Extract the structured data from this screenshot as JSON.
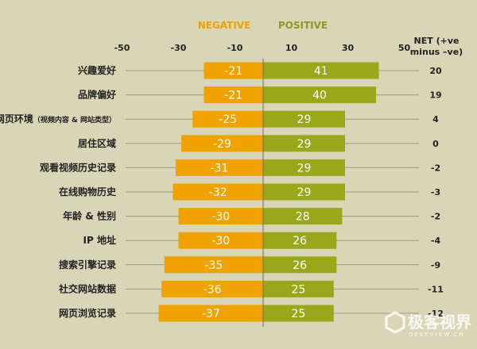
{
  "chart_data": {
    "type": "bar",
    "subtype": "diverging",
    "xlim": [
      -50,
      50
    ],
    "xticks": [
      -50,
      -30,
      -10,
      10,
      30,
      50
    ],
    "legend": {
      "negative": "NEGATIVE",
      "positive": "POSITIVE"
    },
    "net_header": [
      "NET (+ve",
      "minus –ve)"
    ],
    "colors": {
      "negative": "#f0a300",
      "positive": "#97a81a",
      "background": "#d9d6b7"
    },
    "categories": [
      "兴趣爱好",
      "品牌偏好",
      "网页环境（视频内容 & 网站类型）",
      "居住区域",
      "观看视频历史记录",
      "在线购物历史",
      "年龄 & 性别",
      "IP 地址",
      "搜索引擎记录",
      "社交网站数据",
      "网页浏览记录"
    ],
    "series": [
      {
        "name": "NEGATIVE",
        "values": [
          -21,
          -21,
          -25,
          -29,
          -31,
          -32,
          -30,
          -30,
          -35,
          -36,
          -37
        ]
      },
      {
        "name": "POSITIVE",
        "values": [
          41,
          40,
          29,
          29,
          29,
          29,
          28,
          26,
          26,
          25,
          25
        ]
      }
    ],
    "net": [
      20,
      19,
      4,
      0,
      -2,
      -3,
      -2,
      -4,
      -9,
      -11,
      -12
    ]
  },
  "watermark": {
    "text": "极客视界",
    "sub": "GEEKVIEW.CN",
    "icon": "hexagon-g-icon"
  }
}
